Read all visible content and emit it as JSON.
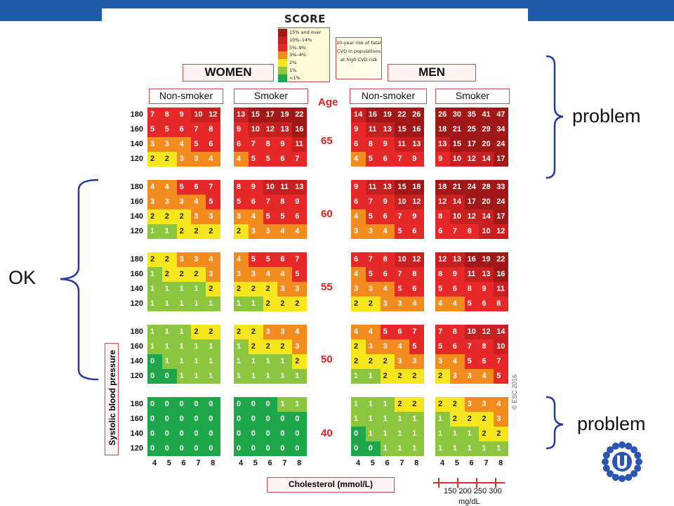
{
  "header": {
    "logo_text": "SCORE"
  },
  "legend": {
    "items": [
      {
        "label": "15% and over",
        "color": "#a01818"
      },
      {
        "label": "10%–14%",
        "color": "#c82020"
      },
      {
        "label": "5%–9%",
        "color": "#e62828"
      },
      {
        "label": "3%–4%",
        "color": "#f28c1e"
      },
      {
        "label": "2%",
        "color": "#f5e61e"
      },
      {
        "label": "1%",
        "color": "#8cc63f"
      },
      {
        "label": "<1%",
        "color": "#1ea64b"
      }
    ],
    "note": "10-year risk of fatal CVD in populations at high CVD risk"
  },
  "panels": {
    "women": "WOMEN",
    "men": "MEN",
    "non_smoker": "Non-smoker",
    "smoker": "Smoker",
    "age_header": "Age"
  },
  "ages": [
    "65",
    "60",
    "55",
    "50",
    "40"
  ],
  "bp_values": [
    "180",
    "160",
    "140",
    "120"
  ],
  "cholesterol_ticks": [
    "4",
    "5",
    "6",
    "7",
    "8"
  ],
  "cholesterol_label": "Cholesterol (mmol/L)",
  "sbp_label": "Systolic blood pressure",
  "copyright": "© ESC 2016",
  "mgdl": {
    "values": "150 200 250 300",
    "unit": "mg/dL"
  },
  "annotations": {
    "problem_top": "problem",
    "ok": "OK",
    "problem_bottom": "problem"
  },
  "grid": {
    "women_nonsmoker": [
      [
        [
          7,
          8,
          9,
          10,
          12
        ],
        [
          5,
          5,
          6,
          7,
          8
        ],
        [
          3,
          3,
          4,
          5,
          6
        ],
        [
          2,
          2,
          3,
          3,
          4
        ]
      ],
      [
        [
          4,
          4,
          5,
          6,
          7
        ],
        [
          3,
          3,
          3,
          4,
          5
        ],
        [
          2,
          2,
          2,
          3,
          3
        ],
        [
          1,
          1,
          2,
          2,
          2
        ]
      ],
      [
        [
          2,
          2,
          3,
          3,
          4
        ],
        [
          1,
          2,
          2,
          2,
          3
        ],
        [
          1,
          1,
          1,
          1,
          2
        ],
        [
          1,
          1,
          1,
          1,
          1
        ]
      ],
      [
        [
          1,
          1,
          1,
          2,
          2
        ],
        [
          1,
          1,
          1,
          1,
          1
        ],
        [
          0,
          1,
          1,
          1,
          1
        ],
        [
          0,
          0,
          1,
          1,
          1
        ]
      ],
      [
        [
          0,
          0,
          0,
          0,
          0
        ],
        [
          0,
          0,
          0,
          0,
          0
        ],
        [
          0,
          0,
          0,
          0,
          0
        ],
        [
          0,
          0,
          0,
          0,
          0
        ]
      ]
    ],
    "women_smoker": [
      [
        [
          13,
          15,
          17,
          19,
          22
        ],
        [
          9,
          10,
          12,
          13,
          16
        ],
        [
          6,
          7,
          8,
          9,
          11
        ],
        [
          4,
          5,
          5,
          6,
          7
        ]
      ],
      [
        [
          8,
          9,
          10,
          11,
          13
        ],
        [
          5,
          6,
          7,
          8,
          9
        ],
        [
          3,
          4,
          5,
          5,
          6
        ],
        [
          2,
          3,
          3,
          4,
          4
        ]
      ],
      [
        [
          4,
          5,
          5,
          6,
          7
        ],
        [
          3,
          3,
          4,
          4,
          5
        ],
        [
          2,
          2,
          2,
          3,
          3
        ],
        [
          1,
          1,
          2,
          2,
          2
        ]
      ],
      [
        [
          2,
          2,
          3,
          3,
          4
        ],
        [
          1,
          2,
          2,
          2,
          3
        ],
        [
          1,
          1,
          1,
          1,
          2
        ],
        [
          1,
          1,
          1,
          1,
          1
        ]
      ],
      [
        [
          0,
          0,
          0,
          1,
          1
        ],
        [
          0,
          0,
          0,
          0,
          0
        ],
        [
          0,
          0,
          0,
          0,
          0
        ],
        [
          0,
          0,
          0,
          0,
          0
        ]
      ]
    ],
    "men_nonsmoker": [
      [
        [
          14,
          16,
          19,
          22,
          26
        ],
        [
          9,
          11,
          13,
          15,
          16
        ],
        [
          6,
          8,
          9,
          11,
          13
        ],
        [
          4,
          5,
          6,
          7,
          9
        ]
      ],
      [
        [
          9,
          11,
          13,
          15,
          18
        ],
        [
          6,
          7,
          9,
          10,
          12
        ],
        [
          4,
          5,
          6,
          7,
          9
        ],
        [
          3,
          3,
          4,
          5,
          6
        ]
      ],
      [
        [
          6,
          7,
          8,
          10,
          12
        ],
        [
          4,
          5,
          6,
          7,
          8
        ],
        [
          3,
          3,
          4,
          5,
          6
        ],
        [
          2,
          2,
          3,
          3,
          4
        ]
      ],
      [
        [
          4,
          4,
          5,
          6,
          7
        ],
        [
          2,
          3,
          3,
          4,
          5
        ],
        [
          2,
          2,
          2,
          3,
          3
        ],
        [
          1,
          1,
          2,
          2,
          2
        ]
      ],
      [
        [
          1,
          1,
          1,
          2,
          2
        ],
        [
          1,
          1,
          1,
          1,
          1
        ],
        [
          0,
          1,
          1,
          1,
          1
        ],
        [
          0,
          0,
          1,
          1,
          1
        ]
      ]
    ],
    "men_smoker": [
      [
        [
          26,
          30,
          35,
          41,
          47
        ],
        [
          18,
          21,
          25,
          29,
          34
        ],
        [
          13,
          15,
          17,
          20,
          24
        ],
        [
          9,
          10,
          12,
          14,
          17
        ]
      ],
      [
        [
          18,
          21,
          24,
          28,
          33
        ],
        [
          12,
          14,
          17,
          20,
          24
        ],
        [
          8,
          10,
          12,
          14,
          17
        ],
        [
          6,
          7,
          8,
          10,
          12
        ]
      ],
      [
        [
          12,
          13,
          16,
          19,
          22
        ],
        [
          8,
          9,
          11,
          13,
          16
        ],
        [
          5,
          6,
          8,
          9,
          11
        ],
        [
          4,
          4,
          5,
          6,
          8
        ]
      ],
      [
        [
          7,
          8,
          10,
          12,
          14
        ],
        [
          5,
          6,
          7,
          8,
          10
        ],
        [
          3,
          4,
          5,
          6,
          7
        ],
        [
          2,
          3,
          3,
          4,
          5
        ]
      ],
      [
        [
          2,
          2,
          3,
          3,
          4
        ],
        [
          1,
          2,
          2,
          2,
          3
        ],
        [
          1,
          1,
          1,
          2,
          2
        ],
        [
          1,
          1,
          1,
          1,
          1
        ]
      ]
    ]
  }
}
